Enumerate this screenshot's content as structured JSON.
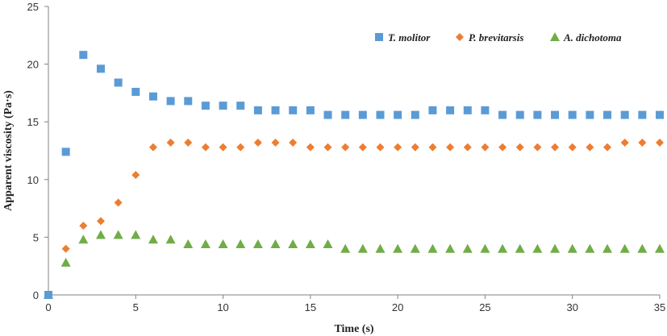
{
  "chart_data": {
    "type": "scatter",
    "title": "",
    "xlabel": "Time (s)",
    "ylabel": "Apparent viscosity (Pa·s)",
    "xlim": [
      0,
      35
    ],
    "ylim": [
      0,
      25
    ],
    "xticks": [
      "0",
      "5",
      "10",
      "15",
      "20",
      "25",
      "30",
      "35"
    ],
    "yticks": [
      "0",
      "5",
      "10",
      "15",
      "20",
      "25"
    ],
    "grid": false,
    "legend": "top-right",
    "series": [
      {
        "name": "T. molitor",
        "marker": "square",
        "color": "#5B9BD5",
        "x": [
          0,
          1,
          2,
          3,
          4,
          5,
          6,
          7,
          8,
          9,
          10,
          11,
          12,
          13,
          14,
          15,
          16,
          17,
          18,
          19,
          20,
          21,
          22,
          23,
          24,
          25,
          26,
          27,
          28,
          29,
          30,
          31,
          32,
          33,
          34,
          35
        ],
        "y": [
          0,
          12.4,
          20.8,
          19.6,
          18.4,
          17.6,
          17.2,
          16.8,
          16.8,
          16.4,
          16.4,
          16.4,
          16.0,
          16.0,
          16.0,
          16.0,
          15.6,
          15.6,
          15.6,
          15.6,
          15.6,
          15.6,
          16.0,
          16.0,
          16.0,
          16.0,
          15.6,
          15.6,
          15.6,
          15.6,
          15.6,
          15.6,
          15.6,
          15.6,
          15.6,
          15.6
        ]
      },
      {
        "name": "P. brevitarsis",
        "marker": "diamond",
        "color": "#ED7D31",
        "x": [
          0,
          1,
          2,
          3,
          4,
          5,
          6,
          7,
          8,
          9,
          10,
          11,
          12,
          13,
          14,
          15,
          16,
          17,
          18,
          19,
          20,
          21,
          22,
          23,
          24,
          25,
          26,
          27,
          28,
          29,
          30,
          31,
          32,
          33,
          34,
          35
        ],
        "y": [
          0,
          4.0,
          6.0,
          6.4,
          8.0,
          10.4,
          12.8,
          13.2,
          13.2,
          12.8,
          12.8,
          12.8,
          13.2,
          13.2,
          13.2,
          12.8,
          12.8,
          12.8,
          12.8,
          12.8,
          12.8,
          12.8,
          12.8,
          12.8,
          12.8,
          12.8,
          12.8,
          12.8,
          12.8,
          12.8,
          12.8,
          12.8,
          12.8,
          13.2,
          13.2,
          13.2
        ]
      },
      {
        "name": "A. dichotoma",
        "marker": "triangle",
        "color": "#70AD47",
        "x": [
          0,
          1,
          2,
          3,
          4,
          5,
          6,
          7,
          8,
          9,
          10,
          11,
          12,
          13,
          14,
          15,
          16,
          17,
          18,
          19,
          20,
          21,
          22,
          23,
          24,
          25,
          26,
          27,
          28,
          29,
          30,
          31,
          32,
          33,
          34,
          35
        ],
        "y": [
          0,
          2.8,
          4.8,
          5.2,
          5.2,
          5.2,
          4.8,
          4.8,
          4.4,
          4.4,
          4.4,
          4.4,
          4.4,
          4.4,
          4.4,
          4.4,
          4.4,
          4.0,
          4.0,
          4.0,
          4.0,
          4.0,
          4.0,
          4.0,
          4.0,
          4.0,
          4.0,
          4.0,
          4.0,
          4.0,
          4.0,
          4.0,
          4.0,
          4.0,
          4.0,
          4.0
        ]
      }
    ]
  }
}
